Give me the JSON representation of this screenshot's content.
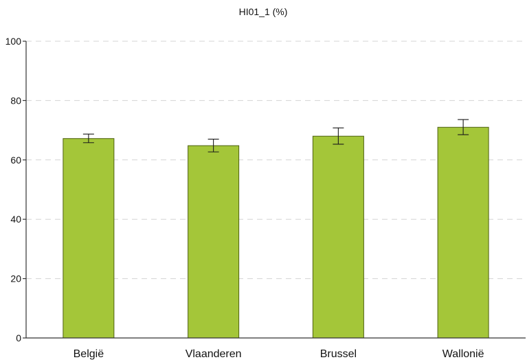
{
  "chart_data": {
    "type": "bar",
    "title": "HI01_1 (%)",
    "xlabel": "",
    "ylabel": "",
    "categories": [
      "België",
      "Vlaanderen",
      "Brussel",
      "Wallonië"
    ],
    "values": [
      67.2,
      64.8,
      68.0,
      71.0
    ],
    "error_low": [
      65.8,
      62.7,
      65.3,
      68.5
    ],
    "error_high": [
      68.7,
      67.0,
      70.8,
      73.6
    ],
    "ylim": [
      0,
      100
    ],
    "yticks": [
      0,
      20,
      40,
      60,
      80,
      100
    ],
    "grid": true,
    "legend": "none",
    "colors": {
      "bar": "#a4c639",
      "bar_edge": "#4d5f10",
      "grid": "#d4d4d4",
      "axis": "#333333"
    }
  }
}
